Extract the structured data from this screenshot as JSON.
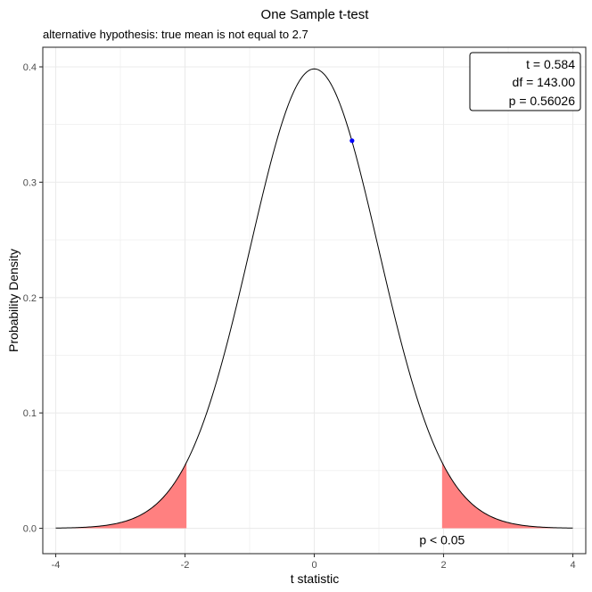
{
  "chart_data": {
    "type": "area",
    "title": "One Sample t-test",
    "subtitle": "alternative hypothesis: true mean is not equal to 2.7",
    "xlabel": "t statistic",
    "ylabel": "Probability Density",
    "xlim": [
      -4.2,
      4.2
    ],
    "ylim": [
      -0.022,
      0.417
    ],
    "x_ticks": [
      -4,
      -2,
      0,
      2,
      4
    ],
    "x_tick_labels": [
      "-4",
      "-2",
      "0",
      "2",
      "4"
    ],
    "y_ticks": [
      0.0,
      0.1,
      0.2,
      0.3,
      0.4
    ],
    "y_tick_labels": [
      "0.0",
      "0.1",
      "0.2",
      "0.3",
      "0.4"
    ],
    "grid": true,
    "distribution": {
      "name": "t",
      "df": 143,
      "x_range": [
        -4,
        4
      ]
    },
    "critical_value": 1.977,
    "rejection_fill_color": "#ff8080",
    "curve_color": "#000000",
    "observed_point": {
      "x": 0.584,
      "y": 0.336,
      "color": "#0000ff"
    },
    "rejection_label": "p < 0.05",
    "rejection_label_color": "#ff0000",
    "rejection_label_position": {
      "x": 1.977,
      "y": -0.01
    },
    "stats_box": {
      "placement": "top-right",
      "lines": [
        "t = 0.584",
        "df = 143.00",
        "p = 0.56026"
      ]
    }
  }
}
